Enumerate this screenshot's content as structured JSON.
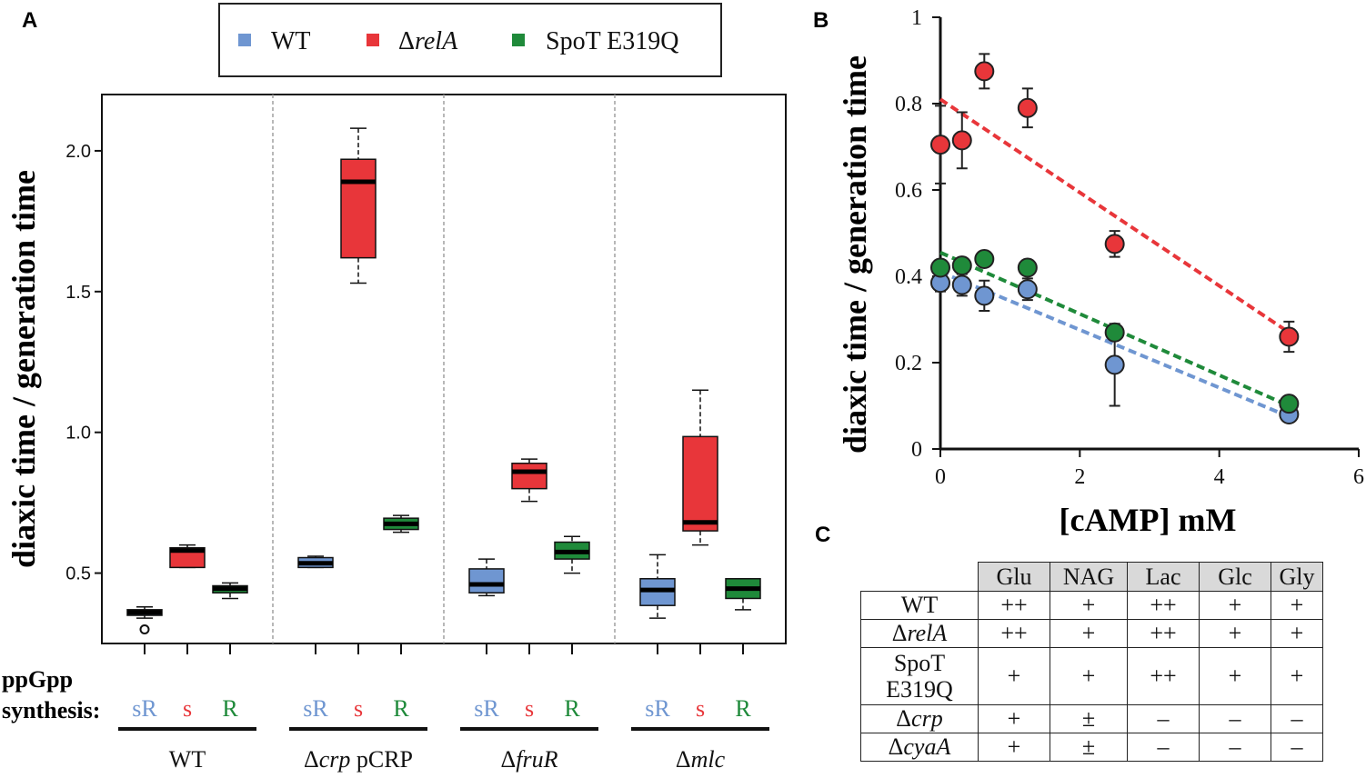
{
  "panels": {
    "a": "A",
    "b": "B",
    "c": "C"
  },
  "legend": {
    "items": [
      {
        "label": "WT",
        "prefix": "",
        "italic": false,
        "color": "#6f96d1"
      },
      {
        "label": "relA",
        "prefix": "Δ",
        "italic": true,
        "color": "#e8363a"
      },
      {
        "label": "SpoT E319Q",
        "prefix": "",
        "italic": false,
        "color": "#1f8a3a"
      }
    ]
  },
  "chart_data": [
    {
      "type": "box",
      "panel": "A",
      "ylabel": "diaxic time / generation time",
      "ylim": [
        0.25,
        2.2
      ],
      "yticks": [
        0.5,
        1.0,
        1.5,
        2.0
      ],
      "ytick_labels": [
        "0.5",
        "1.0",
        "1.5",
        "2.0"
      ],
      "row_label": "ppGpp synthesis:",
      "groups": [
        {
          "prefix": "",
          "name": "WT",
          "suffix": "",
          "boxes": [
            {
              "series": "WT",
              "synth": "sR",
              "color": "#6f96d1",
              "whisker_low": 0.34,
              "q1": 0.35,
              "median": 0.36,
              "q3": 0.37,
              "whisker_high": 0.38,
              "outliers": [
                0.3
              ]
            },
            {
              "series": "relA",
              "synth": "s",
              "color": "#e8363a",
              "whisker_low": 0.52,
              "q1": 0.52,
              "median": 0.58,
              "q3": 0.59,
              "whisker_high": 0.6,
              "outliers": []
            },
            {
              "series": "SpoT E319Q",
              "synth": "R",
              "color": "#1f8a3a",
              "whisker_low": 0.41,
              "q1": 0.43,
              "median": 0.445,
              "q3": 0.455,
              "whisker_high": 0.465,
              "outliers": []
            }
          ]
        },
        {
          "prefix": "Δ",
          "name": "crp",
          "suffix": " pCRP",
          "boxes": [
            {
              "series": "WT",
              "synth": "sR",
              "color": "#6f96d1",
              "whisker_low": 0.52,
              "q1": 0.52,
              "median": 0.535,
              "q3": 0.555,
              "whisker_high": 0.56,
              "outliers": []
            },
            {
              "series": "relA",
              "synth": "s",
              "color": "#e8363a",
              "whisker_low": 1.53,
              "q1": 1.62,
              "median": 1.89,
              "q3": 1.97,
              "whisker_high": 2.08,
              "outliers": []
            },
            {
              "series": "SpoT E319Q",
              "synth": "R",
              "color": "#1f8a3a",
              "whisker_low": 0.645,
              "q1": 0.655,
              "median": 0.675,
              "q3": 0.695,
              "whisker_high": 0.705,
              "outliers": []
            }
          ]
        },
        {
          "prefix": "Δ",
          "name": "fruR",
          "suffix": "",
          "boxes": [
            {
              "series": "WT",
              "synth": "sR",
              "color": "#6f96d1",
              "whisker_low": 0.42,
              "q1": 0.43,
              "median": 0.46,
              "q3": 0.515,
              "whisker_high": 0.55,
              "outliers": []
            },
            {
              "series": "relA",
              "synth": "s",
              "color": "#e8363a",
              "whisker_low": 0.755,
              "q1": 0.8,
              "median": 0.86,
              "q3": 0.89,
              "whisker_high": 0.905,
              "outliers": []
            },
            {
              "series": "SpoT E319Q",
              "synth": "R",
              "color": "#1f8a3a",
              "whisker_low": 0.5,
              "q1": 0.55,
              "median": 0.575,
              "q3": 0.61,
              "whisker_high": 0.63,
              "outliers": []
            }
          ]
        },
        {
          "prefix": "Δ",
          "name": "mlc",
          "suffix": "",
          "boxes": [
            {
              "series": "WT",
              "synth": "sR",
              "color": "#6f96d1",
              "whisker_low": 0.34,
              "q1": 0.385,
              "median": 0.44,
              "q3": 0.48,
              "whisker_high": 0.565,
              "outliers": []
            },
            {
              "series": "relA",
              "synth": "s",
              "color": "#e8363a",
              "whisker_low": 0.6,
              "q1": 0.65,
              "median": 0.68,
              "q3": 0.985,
              "whisker_high": 1.15,
              "outliers": []
            },
            {
              "series": "SpoT E319Q",
              "synth": "R",
              "color": "#1f8a3a",
              "whisker_low": 0.37,
              "q1": 0.41,
              "median": 0.445,
              "q3": 0.48,
              "whisker_high": 0.48,
              "outliers": []
            }
          ]
        }
      ]
    },
    {
      "type": "scatter",
      "panel": "B",
      "ylabel": "diaxic time / generation time",
      "xlabel": "[cAMP] mM",
      "xlim": [
        0,
        6
      ],
      "ylim": [
        0,
        1
      ],
      "xticks": [
        0,
        2,
        4,
        6
      ],
      "xtick_labels": [
        "0",
        "2",
        "4",
        "6"
      ],
      "yticks": [
        0,
        0.2,
        0.4,
        0.6,
        0.8,
        1
      ],
      "ytick_labels": [
        "0",
        "0.2",
        "0.4",
        "0.6",
        "0.8",
        "1"
      ],
      "series": [
        {
          "name": "WT",
          "color": "#6f96d1",
          "x": [
            0,
            0.31,
            0.63,
            1.25,
            2.5,
            5
          ],
          "y": [
            0.385,
            0.38,
            0.355,
            0.37,
            0.195,
            0.08
          ],
          "err": [
            0.02,
            0.025,
            0.035,
            0.025,
            0.095,
            0.01
          ],
          "trend": [
            0.41,
            0.075
          ]
        },
        {
          "name": "relA",
          "color": "#e8363a",
          "x": [
            0,
            0.31,
            0.63,
            1.25,
            2.5,
            5
          ],
          "y": [
            0.705,
            0.715,
            0.875,
            0.79,
            0.475,
            0.26
          ],
          "err": [
            0.09,
            0.065,
            0.04,
            0.045,
            0.03,
            0.035
          ],
          "trend": [
            0.81,
            0.27
          ]
        },
        {
          "name": "SpoT E319Q",
          "color": "#1f8a3a",
          "x": [
            0,
            0.31,
            0.63,
            1.25,
            2.5,
            5
          ],
          "y": [
            0.42,
            0.425,
            0.44,
            0.42,
            0.27,
            0.105
          ],
          "err": [
            0.015,
            0.015,
            0.015,
            0.015,
            0.015,
            0.01
          ],
          "trend": [
            0.455,
            0.1
          ]
        }
      ]
    }
  ],
  "table": {
    "headers": [
      "Glu",
      "NAG",
      "Lac",
      "Glc",
      "Gly"
    ],
    "rows": [
      {
        "prefix": "",
        "label": "WT",
        "label2": "",
        "italic": false,
        "values": [
          "++",
          "+",
          "++",
          "+",
          "+"
        ]
      },
      {
        "prefix": "Δ",
        "label": "relA",
        "label2": "",
        "italic": true,
        "values": [
          "++",
          "+",
          "++",
          "+",
          "+"
        ]
      },
      {
        "prefix": "",
        "label": "SpoT",
        "label2": "E319Q",
        "italic": false,
        "values": [
          "+",
          "+",
          "++",
          "+",
          "+"
        ]
      },
      {
        "prefix": "Δ",
        "label": "crp",
        "label2": "",
        "italic": true,
        "values": [
          "+",
          "±",
          "–",
          "–",
          "–"
        ]
      },
      {
        "prefix": "Δ",
        "label": "cyaA",
        "label2": "",
        "italic": true,
        "values": [
          "+",
          "±",
          "–",
          "–",
          "–"
        ]
      }
    ]
  }
}
